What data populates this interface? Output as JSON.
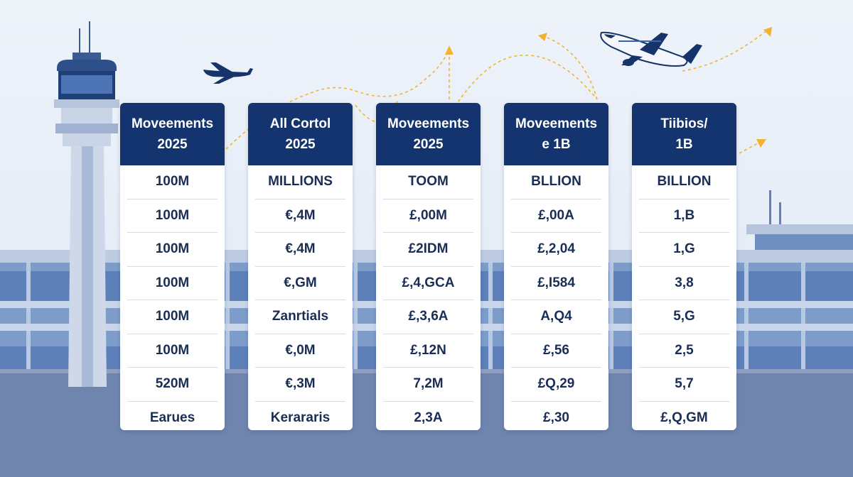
{
  "columns": [
    {
      "header": [
        "Moveements",
        "2025"
      ],
      "rows": [
        "100M",
        "100M",
        "100M",
        "100M",
        "100M",
        "100M",
        "520M",
        "Earues"
      ]
    },
    {
      "header": [
        "All Cortol",
        "2025"
      ],
      "rows": [
        "MILLIONS",
        "€,4M",
        "€,4M",
        "€,GM",
        "Zanrtials",
        "€,0M",
        "€,3M",
        "Kerararis"
      ]
    },
    {
      "header": [
        "Moveements",
        "2025"
      ],
      "rows": [
        "TOOM",
        "£,00M",
        "£2IDM",
        "£,4,GCA",
        "£,3,6A",
        "£,12N",
        "7,2M",
        "2,3A"
      ]
    },
    {
      "header": [
        "Moveements",
        "e 1B"
      ],
      "rows": [
        "BLLION",
        "£,00A",
        "£,2,04",
        "£,I584",
        "A,Q4",
        "£,56",
        "£Q,29",
        "£,30"
      ]
    },
    {
      "header": [
        "Tiibios/",
        "1B"
      ],
      "rows": [
        "BILLION",
        "1,B",
        "1,G",
        "3,8",
        "5,G",
        "2,5",
        "5,7",
        "£,Q,GM"
      ]
    }
  ],
  "colors": {
    "header_bg": "#13346e",
    "header_text": "#ffffff",
    "cell_text": "#1a2e55",
    "sky": "#e7eef8",
    "flight_path": "#f2b233"
  },
  "icons": [
    "control-tower-icon",
    "airplane-icon",
    "terminal-building-icon",
    "flight-path-arrow-icon"
  ]
}
